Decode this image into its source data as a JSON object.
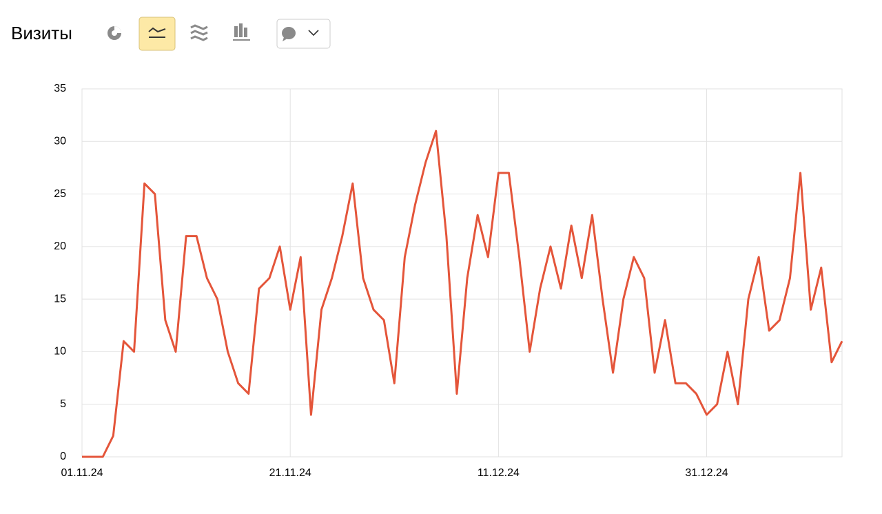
{
  "header": {
    "title": "Визиты"
  },
  "chart_data": {
    "type": "line",
    "categories": [
      "01.11.24",
      null,
      null,
      null,
      null,
      null,
      null,
      null,
      null,
      null,
      null,
      null,
      null,
      null,
      null,
      null,
      null,
      null,
      null,
      null,
      "21.11.24",
      null,
      null,
      null,
      null,
      null,
      null,
      null,
      null,
      null,
      null,
      null,
      null,
      null,
      null,
      null,
      null,
      null,
      null,
      null,
      "11.12.24",
      null,
      null,
      null,
      null,
      null,
      null,
      null,
      null,
      null,
      null,
      null,
      null,
      null,
      null,
      null,
      null,
      null,
      null,
      null,
      "31.12.24",
      null,
      null,
      null,
      null,
      null,
      null,
      null,
      null,
      null,
      null,
      null,
      null,
      null
    ],
    "values": [
      0,
      0,
      0,
      2,
      11,
      10,
      26,
      25,
      13,
      10,
      21,
      21,
      17,
      15,
      10,
      7,
      6,
      16,
      17,
      20,
      14,
      19,
      4,
      14,
      17,
      21,
      26,
      17,
      14,
      13,
      7,
      19,
      24,
      28,
      31,
      21,
      6,
      17,
      23,
      19,
      27,
      27,
      19,
      10,
      16,
      20,
      16,
      22,
      17,
      23,
      15,
      8,
      15,
      19,
      17,
      8,
      13,
      7,
      7,
      6,
      4,
      5,
      10,
      5,
      15,
      19,
      12,
      13,
      17,
      27,
      14,
      18,
      9,
      11
    ],
    "color": "#e4553a",
    "ylim": [
      0,
      35
    ],
    "yticks": [
      0,
      5,
      10,
      15,
      20,
      25,
      30,
      35
    ],
    "grid": true
  }
}
